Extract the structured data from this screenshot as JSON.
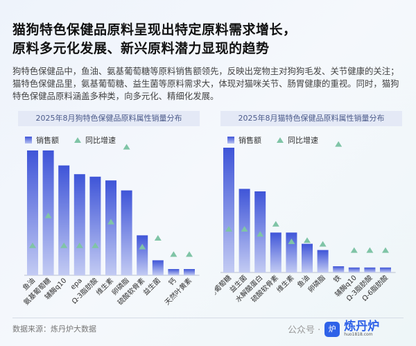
{
  "title_line1": "猫狗特色保健品原料呈现出特定原料需求增长，",
  "title_line2": "原料多元化发展、新兴原料潜力显现的趋势",
  "description": "狗特色保健品中，鱼油、氨基葡萄糖等原料销售额领先，反映出宠物主对狗狗毛发、关节健康的关注；猫特色保健品里，氨基葡萄糖、益生菌等原料需求大，体现对猫咪关节、肠胃健康的重视。同时，猫狗特色保健品原料涵盖多种类，向多元化、精细化发展。",
  "colors": {
    "bar_top": "#3f55d8",
    "bar_bottom": "#c3cbf3",
    "triangle": "#7fc4a6"
  },
  "chart_data": [
    {
      "type": "bar",
      "title": "2025年8月狗特色保健品原料属性销量分布",
      "categories": [
        "鱼油",
        "氨基葡萄糖",
        "辅酶q10",
        "epa",
        "Ω-3脂肪酸",
        "维生素",
        "卵磷脂",
        "硫酸软骨素",
        "益生菌",
        "钙",
        "天然叶黄素"
      ],
      "series": [
        {
          "name": "销售额",
          "type": "bar",
          "values": [
            100,
            100,
            88,
            81,
            79,
            76,
            68,
            32,
            12,
            5,
            5
          ]
        },
        {
          "name": "同比增速",
          "type": "triangle-marker",
          "values": [
            24,
            48,
            24,
            24,
            24,
            43,
            103,
            23,
            30,
            17,
            17
          ]
        }
      ],
      "relative_scale": true,
      "grid": false,
      "legend": "top-left"
    },
    {
      "type": "bar",
      "title": "2025年8月猫特色保健品原料属性销量分布",
      "categories": [
        "氨基葡萄糖",
        "益生菌",
        "水解酪蛋白",
        "硫酸软骨素",
        "维生素",
        "鱼油",
        "卵磷脂",
        "铁",
        "辅酶q10",
        "Ω-3脂肪酸",
        "Ω-6脂肪酸"
      ],
      "series": [
        {
          "name": "销售额",
          "type": "bar",
          "values": [
            100,
            67,
            65,
            32,
            32,
            23,
            18,
            5,
            4,
            4,
            4
          ]
        },
        {
          "name": "同比增速",
          "type": "triangle-marker",
          "values": [
            35,
            35,
            31,
            39,
            25,
            26,
            23,
            103,
            18,
            18,
            18
          ]
        }
      ],
      "relative_scale": true,
      "grid": false,
      "legend": "top-left"
    }
  ],
  "legend": {
    "sales": "销售额",
    "growth": "同比增速"
  },
  "footer": {
    "source": "数据来源：炼丹炉大数据",
    "wechat": "公众号 ·",
    "brand": "炼丹炉",
    "brand_url": "huo1818.com"
  }
}
